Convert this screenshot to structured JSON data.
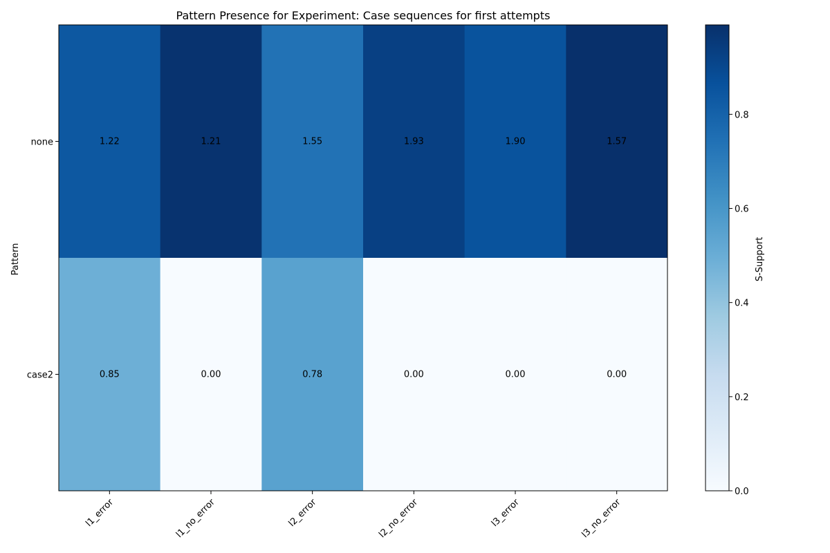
{
  "chart_data": {
    "type": "heatmap",
    "title": "Pattern Presence for Experiment: Case sequences for first attempts",
    "ylabel": "Pattern",
    "colorbar_label": "S-Support",
    "x_categories": [
      "l1_error",
      "l1_no_error",
      "l2_error",
      "l2_no_error",
      "l3_error",
      "l3_no_error"
    ],
    "y_categories": [
      "none",
      "case2"
    ],
    "cell_labels": [
      [
        "1.22",
        "1.21",
        "1.55",
        "1.93",
        "1.90",
        "1.57"
      ],
      [
        "0.85",
        "0.00",
        "0.78",
        "0.00",
        "0.00",
        "0.00"
      ]
    ],
    "color_values": [
      [
        0.84,
        0.98,
        0.74,
        0.93,
        0.86,
        0.99
      ],
      [
        0.49,
        0.0,
        0.55,
        0.0,
        0.0,
        0.0
      ]
    ],
    "colorbar_range": [
      0.0,
      0.99
    ],
    "colorbar_ticks": [
      0.0,
      0.2,
      0.4,
      0.6,
      0.8
    ],
    "colorbar_tick_labels": [
      "0.0",
      "0.2",
      "0.4",
      "0.6",
      "0.8"
    ],
    "colormap": "Blues",
    "colormap_stops": [
      "#f7fbff",
      "#deebf7",
      "#c6dbef",
      "#9ecae1",
      "#6baed6",
      "#4292c6",
      "#2171b5",
      "#08519c",
      "#08306b"
    ]
  }
}
